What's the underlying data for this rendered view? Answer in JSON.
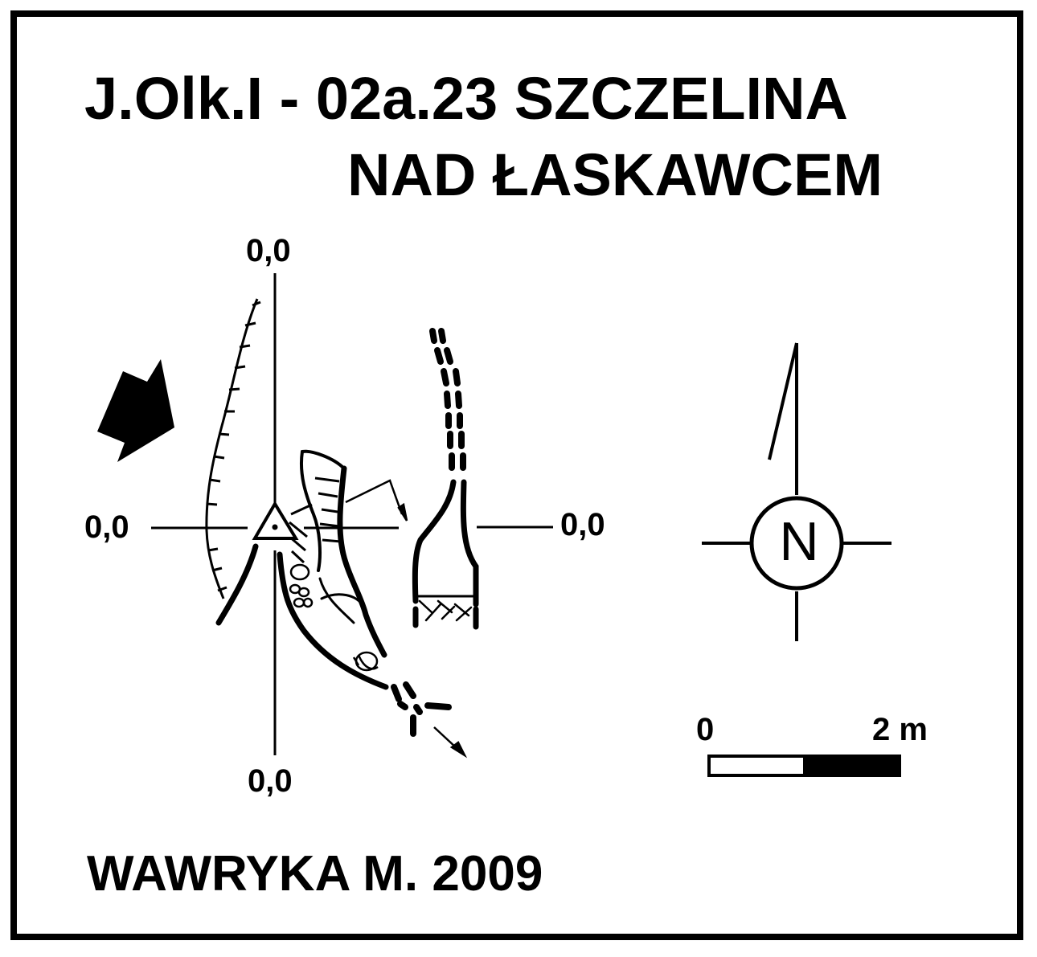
{
  "title": {
    "line1": "J.Olk.I - 02a.23  SZCZELINA",
    "line2": "NAD ŁASKAWCEM"
  },
  "coordinates": {
    "top": "0,0",
    "left": "0,0",
    "right": "0,0",
    "bottom": "0,0"
  },
  "north_arrow": {
    "letter": "N",
    "icon": "north-arrow-icon"
  },
  "scale_bar": {
    "start_label": "0",
    "end_label": "2 m"
  },
  "author": "WAWRYKA M. 2009",
  "colors": {
    "ink": "#000000",
    "paper": "#ffffff"
  }
}
